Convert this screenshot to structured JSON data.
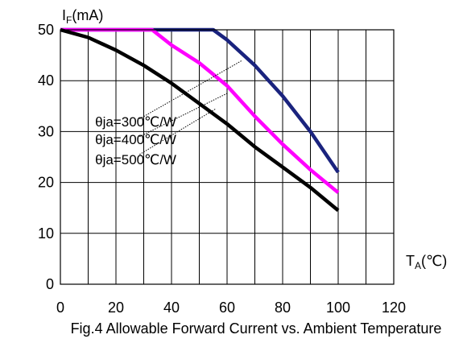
{
  "chart_data": {
    "type": "line",
    "title": "",
    "caption": "Fig.4 Allowable Forward Current vs. Ambient Temperature",
    "ylabel": {
      "main": "I",
      "sub": "F",
      "rest": "(mA)"
    },
    "xlabel": {
      "main": "T",
      "sub": "A",
      "rest": "(℃)"
    },
    "xlim": [
      0,
      120
    ],
    "ylim": [
      0,
      50
    ],
    "x_ticks": [
      0,
      20,
      40,
      60,
      80,
      100,
      120
    ],
    "y_ticks": [
      0,
      10,
      20,
      30,
      40,
      50
    ],
    "x_grid_step": 10,
    "y_grid_step": 10,
    "grid": true,
    "series": [
      {
        "name": "θja=300℃/W",
        "color": "#1a237e",
        "points": [
          [
            0,
            50
          ],
          [
            55,
            50
          ],
          [
            60,
            48
          ],
          [
            70,
            43
          ],
          [
            80,
            37
          ],
          [
            90,
            30
          ],
          [
            100,
            22
          ]
        ]
      },
      {
        "name": "θja=400℃/W",
        "color": "#ff00ff",
        "points": [
          [
            0,
            50
          ],
          [
            33,
            50
          ],
          [
            40,
            47
          ],
          [
            50,
            43.5
          ],
          [
            60,
            39
          ],
          [
            70,
            33
          ],
          [
            80,
            27.5
          ],
          [
            90,
            22.5
          ],
          [
            100,
            18
          ]
        ]
      },
      {
        "name": "θja=500℃/W",
        "color": "#000000",
        "points": [
          [
            0,
            50
          ],
          [
            10,
            48.5
          ],
          [
            20,
            46
          ],
          [
            30,
            43
          ],
          [
            40,
            39.5
          ],
          [
            50,
            35.5
          ],
          [
            60,
            31.5
          ],
          [
            70,
            27
          ],
          [
            80,
            23
          ],
          [
            90,
            19
          ],
          [
            100,
            14.5
          ]
        ]
      }
    ],
    "annotations": [
      {
        "text": "θja=300℃/W",
        "label_at": [
          12.5,
          32
        ],
        "line_from": [
          28.5,
          32.5
        ],
        "line_to": [
          65.5,
          44
        ]
      },
      {
        "text": "θja=400℃/W",
        "label_at": [
          12.5,
          28.5
        ],
        "line_from": [
          28.5,
          29
        ],
        "line_to": [
          60,
          37.5
        ]
      },
      {
        "text": "θja=500℃/W",
        "label_at": [
          12.5,
          24.5
        ],
        "line_from": [
          28.5,
          25.5
        ],
        "line_to": [
          56,
          34.5
        ]
      }
    ]
  }
}
